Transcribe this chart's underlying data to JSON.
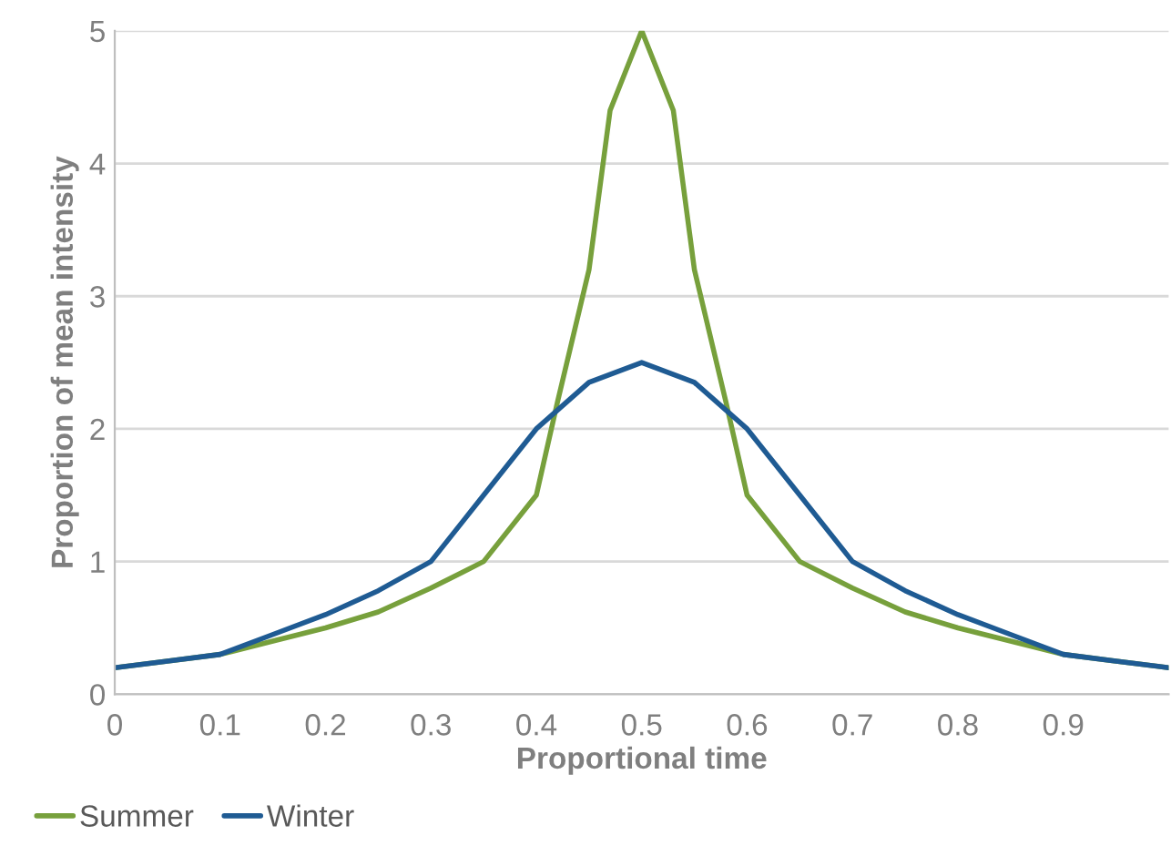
{
  "chart_data": {
    "type": "line",
    "xlabel": "Proportional time",
    "ylabel": "Proportion of mean intensity",
    "xlim": [
      0,
      1
    ],
    "ylim": [
      0,
      5
    ],
    "xticks": [
      0,
      0.1,
      0.2,
      0.3,
      0.4,
      0.5,
      0.6,
      0.7,
      0.8,
      0.9
    ],
    "yticks": [
      0,
      1,
      2,
      3,
      4,
      5
    ],
    "grid": "y",
    "legend": "bottom left",
    "marker": "none",
    "line_style": "solid",
    "series": [
      {
        "name": "Summer",
        "color": "#77a03c",
        "x": [
          0,
          0.05,
          0.1,
          0.15,
          0.2,
          0.25,
          0.3,
          0.35,
          0.4,
          0.42,
          0.45,
          0.47,
          0.5,
          0.53,
          0.55,
          0.58,
          0.6,
          0.65,
          0.7,
          0.75,
          0.8,
          0.85,
          0.9,
          0.95,
          1
        ],
        "values": [
          0.2,
          0.25,
          0.3,
          0.4,
          0.5,
          0.62,
          0.8,
          1.0,
          1.5,
          2.2,
          3.2,
          4.4,
          5,
          4.4,
          3.2,
          2.2,
          1.5,
          1.0,
          0.8,
          0.62,
          0.5,
          0.4,
          0.3,
          0.25,
          0.2
        ]
      },
      {
        "name": "Winter",
        "color": "#1f5b93",
        "x": [
          0,
          0.05,
          0.1,
          0.15,
          0.2,
          0.25,
          0.3,
          0.35,
          0.4,
          0.45,
          0.5,
          0.55,
          0.6,
          0.65,
          0.7,
          0.75,
          0.8,
          0.85,
          0.9,
          0.95,
          1
        ],
        "values": [
          0.2,
          0.25,
          0.3,
          0.45,
          0.6,
          0.78,
          1.0,
          1.5,
          2.0,
          2.35,
          2.5,
          2.35,
          2.0,
          1.5,
          1.0,
          0.78,
          0.6,
          0.45,
          0.3,
          0.25,
          0.2
        ]
      }
    ]
  }
}
